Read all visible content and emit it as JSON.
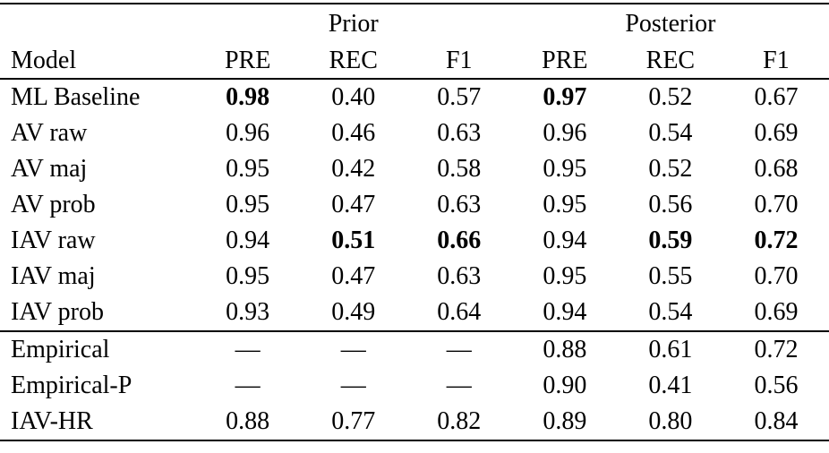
{
  "table": {
    "group_headers": [
      "Prior",
      "Posterior"
    ],
    "columns": [
      "Model",
      "PRE",
      "REC",
      "F1",
      "PRE",
      "REC",
      "F1"
    ],
    "sections": [
      {
        "rows": [
          {
            "model": "ML Baseline",
            "values": [
              "0.98",
              "0.40",
              "0.57",
              "0.97",
              "0.52",
              "0.67"
            ],
            "bold": [
              0,
              3
            ]
          },
          {
            "model": "AV raw",
            "values": [
              "0.96",
              "0.46",
              "0.63",
              "0.96",
              "0.54",
              "0.69"
            ],
            "bold": []
          },
          {
            "model": "AV maj",
            "values": [
              "0.95",
              "0.42",
              "0.58",
              "0.95",
              "0.52",
              "0.68"
            ],
            "bold": []
          },
          {
            "model": "AV prob",
            "values": [
              "0.95",
              "0.47",
              "0.63",
              "0.95",
              "0.56",
              "0.70"
            ],
            "bold": []
          },
          {
            "model": "IAV raw",
            "values": [
              "0.94",
              "0.51",
              "0.66",
              "0.94",
              "0.59",
              "0.72"
            ],
            "bold": [
              1,
              2,
              4,
              5
            ]
          },
          {
            "model": "IAV maj",
            "values": [
              "0.95",
              "0.47",
              "0.63",
              "0.95",
              "0.55",
              "0.70"
            ],
            "bold": []
          },
          {
            "model": "IAV prob",
            "values": [
              "0.93",
              "0.49",
              "0.64",
              "0.94",
              "0.54",
              "0.69"
            ],
            "bold": []
          }
        ]
      },
      {
        "rows": [
          {
            "model": "Empirical",
            "values": [
              "—",
              "—",
              "—",
              "0.88",
              "0.61",
              "0.72"
            ],
            "bold": []
          },
          {
            "model": "Empirical-P",
            "values": [
              "—",
              "—",
              "—",
              "0.90",
              "0.41",
              "0.56"
            ],
            "bold": []
          },
          {
            "model": "IAV-HR",
            "values": [
              "0.88",
              "0.77",
              "0.82",
              "0.89",
              "0.80",
              "0.84"
            ],
            "bold": []
          }
        ]
      }
    ]
  }
}
